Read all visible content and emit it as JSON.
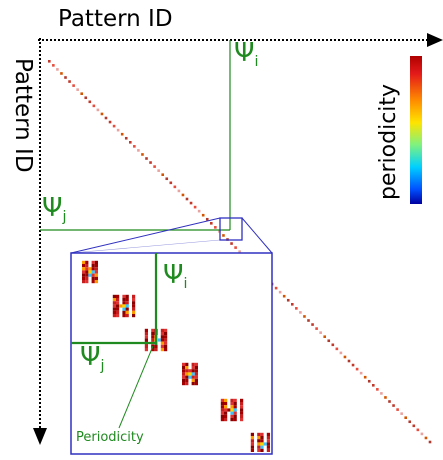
{
  "axes": {
    "x_label": "Pattern ID",
    "y_label": "Pattern ID"
  },
  "annotations": {
    "psi_symbol": "Ψ",
    "psi_i_subscript": "i",
    "psi_j_subscript": "j",
    "inset_callout": "Periodicity"
  },
  "colorbar": {
    "label": "periodicity",
    "colors_top_to_bottom": [
      "#b00000",
      "#e41a1a",
      "#ff8c00",
      "#ffe400",
      "#7ff27f",
      "#00d0ff",
      "#0050ff",
      "#0000a0"
    ]
  },
  "colors": {
    "annotation_green": "#1f8a1f",
    "zoom_box_blue": "#3030c0",
    "diagonal_red": "#c0392b"
  }
}
